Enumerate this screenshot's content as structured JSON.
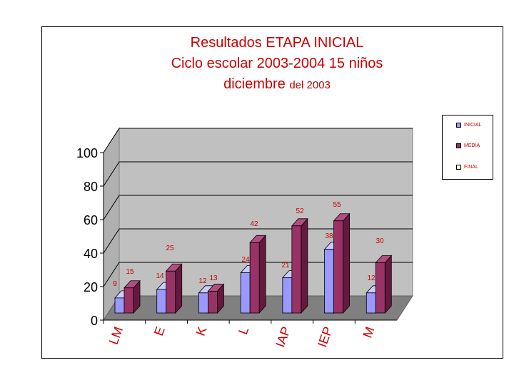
{
  "title": {
    "line1": "Resultados ETAPA INICIAL",
    "line2": "Ciclo escolar 2003-2004 15 niños",
    "line3_main": "diciembre",
    "line3_small": "del 2003"
  },
  "colors": {
    "inicial": "#9999ff",
    "media": "#993366",
    "final": "#ffffcc",
    "wall": "#c0c0c0",
    "floor": "#808080",
    "label": "#cc0000"
  },
  "chart_data": {
    "type": "bar",
    "categories": [
      "LM",
      "E",
      "K",
      "L",
      "IAP",
      "IEP",
      "M"
    ],
    "series": [
      {
        "name": "INICIAL",
        "values": [
          9,
          14,
          12,
          24,
          21,
          38,
          12
        ]
      },
      {
        "name": "MEDIA",
        "values": [
          15,
          25,
          13,
          42,
          52,
          55,
          30
        ]
      },
      {
        "name": "FINAL",
        "values": [
          null,
          null,
          null,
          null,
          null,
          null,
          null
        ]
      }
    ],
    "ylim": [
      0,
      100
    ],
    "yticks": [
      0,
      20,
      40,
      60,
      80,
      100
    ],
    "grid": true,
    "three_d": true,
    "legend_position": "right"
  }
}
